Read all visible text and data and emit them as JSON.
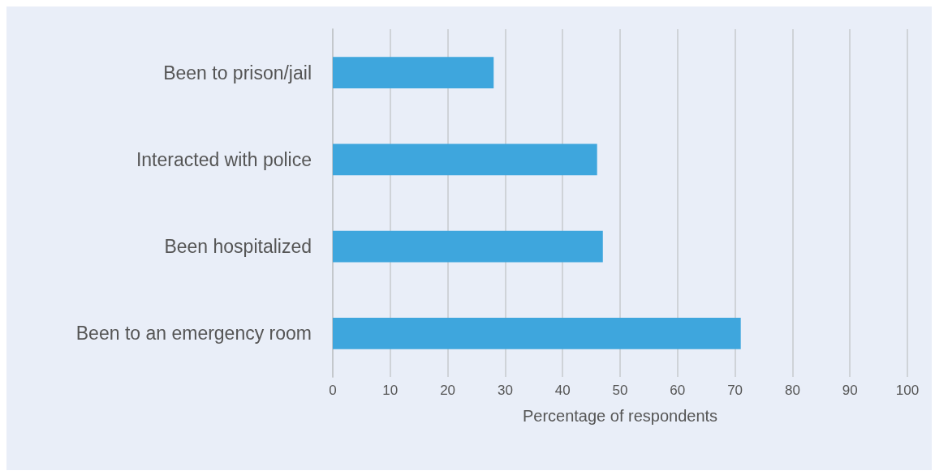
{
  "chart_data": {
    "type": "bar",
    "orientation": "horizontal",
    "categories": [
      "Been to prison/jail",
      "Interacted with police",
      "Been hospitalized",
      "Been to an emergency room"
    ],
    "values": [
      28,
      46,
      47,
      71
    ],
    "color": "#3ea6dd",
    "xlabel": "Percentage of respondents",
    "xlim": [
      0,
      100
    ],
    "xticks": [
      0,
      10,
      20,
      30,
      40,
      50,
      60,
      70,
      80,
      90,
      100
    ],
    "grid": "x"
  }
}
